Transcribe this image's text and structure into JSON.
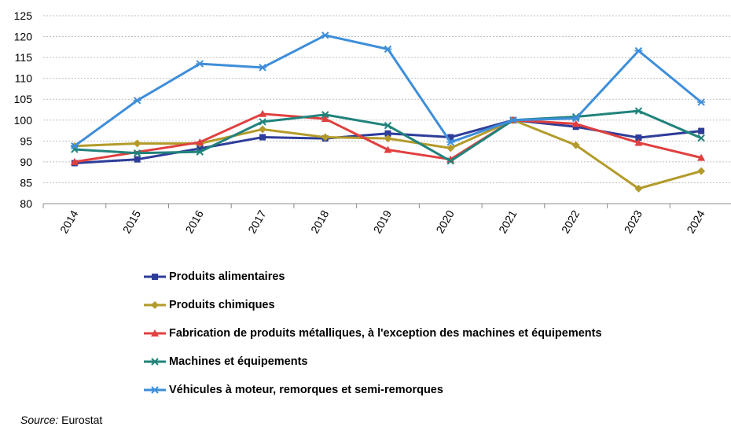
{
  "chart_data": {
    "type": "line",
    "title": "",
    "xlabel": "",
    "ylabel": "",
    "ylim": [
      80,
      125
    ],
    "yticks": [
      80,
      85,
      90,
      95,
      100,
      105,
      110,
      115,
      120,
      125
    ],
    "grid": true,
    "legend_position": "bottom",
    "categories": [
      "2014",
      "2015",
      "2016",
      "2017",
      "2018",
      "2019",
      "2020",
      "2021",
      "2022",
      "2023",
      "2024"
    ],
    "series": [
      {
        "name": "Produits alimentaires",
        "color": "#2E3D99",
        "marker": "square",
        "values": [
          89.7,
          90.6,
          93.2,
          95.9,
          95.6,
          96.8,
          95.9,
          100.0,
          98.4,
          95.8,
          97.4
        ]
      },
      {
        "name": "Produits chimiques",
        "color": "#B39B2B",
        "marker": "diamond",
        "values": [
          93.8,
          94.4,
          94.4,
          97.8,
          95.9,
          95.6,
          93.3,
          100.0,
          94.0,
          83.6,
          87.8
        ]
      },
      {
        "name": "Fabrication de produits métalliques, à l'exception des machines et équipements",
        "color": "#E0403F",
        "marker": "triangle",
        "values": [
          90.0,
          null,
          94.7,
          101.5,
          100.3,
          92.9,
          90.6,
          100.0,
          99.1,
          94.6,
          91.0
        ]
      },
      {
        "name": "Machines et équipements",
        "color": "#21837B",
        "marker": "x",
        "values": [
          93.0,
          92.1,
          92.4,
          99.6,
          101.3,
          98.7,
          90.2,
          100.0,
          100.8,
          102.2,
          95.7
        ]
      },
      {
        "name": "Véhicules à moteur, remorques et semi-remorques",
        "color": "#3E8ED9",
        "marker": "star",
        "values": [
          93.8,
          104.7,
          113.5,
          112.6,
          120.3,
          117.0,
          94.7,
          100.0,
          100.4,
          116.6,
          104.3
        ]
      }
    ]
  },
  "source": {
    "key": "Source:",
    "value": " Eurostat"
  }
}
